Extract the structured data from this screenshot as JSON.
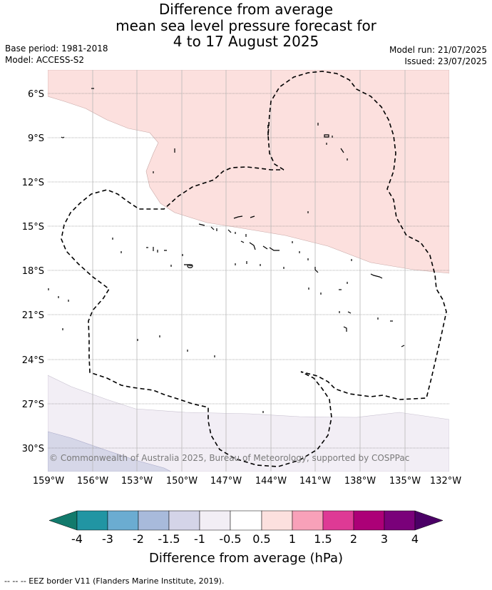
{
  "title_lines": [
    "Difference from average",
    "mean sea level pressure forecast for",
    "4 to 17 August 2025"
  ],
  "meta": {
    "base_period": "Base period: 1981-2018",
    "model": "Model: ACCESS-S2",
    "model_run": "Model run: 21/07/2025",
    "issued": "Issued: 23/07/2025"
  },
  "map": {
    "lat_labels": [
      "6°S",
      "9°S",
      "12°S",
      "15°S",
      "18°S",
      "21°S",
      "24°S",
      "27°S",
      "30°S"
    ],
    "lon_labels": [
      "159°W",
      "156°W",
      "153°W",
      "150°W",
      "147°W",
      "144°W",
      "141°W",
      "138°W",
      "135°W",
      "132°W"
    ],
    "copyright": "© Commonwealth of Australia 2025, Bureau of Meteorology, supported by COSPPac",
    "region_colors": {
      "positive_0_5_to_1": "#fce0de",
      "negative_0_5_to_1": "#f2eef5",
      "negative_1_to_1_5": "#d6d7e8"
    }
  },
  "colorbar": {
    "colors": [
      "#127a6c",
      "#2195a3",
      "#6bacd1",
      "#a8badb",
      "#d4d4e8",
      "#f2eef5",
      "#ffffff",
      "#fce0de",
      "#f8a1b9",
      "#de3a95",
      "#ac0077",
      "#7a017a",
      "#4b0066"
    ],
    "tick_labels": [
      "-4",
      "-3",
      "-2",
      "-1.5",
      "-1",
      "-0.5",
      "0.5",
      "1",
      "1.5",
      "2",
      "3",
      "4"
    ],
    "title": "Difference from average (hPa)"
  },
  "footer": "-- -- -- EEZ border V11 (Flanders Marine Institute, 2019)."
}
